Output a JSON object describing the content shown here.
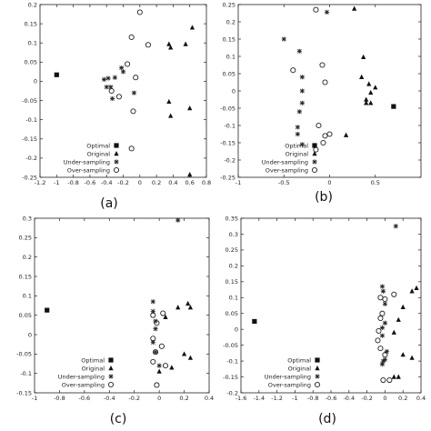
{
  "chart_data": [
    {
      "type": "scatter",
      "caption": "(a)",
      "xlim": [
        -1.2,
        0.8
      ],
      "ylim": [
        -0.25,
        0.2
      ],
      "xticks": [
        "-1.2",
        "-1",
        "-0.8",
        "-0.6",
        "-0.4",
        "-0.2",
        "0",
        "0.2",
        "0.4",
        "0.6",
        "0.8"
      ],
      "yticks": [
        "-0.25",
        "-0.2",
        "-0.15",
        "-0.1",
        "-0.05",
        "0",
        "0.05",
        "0.1",
        "0.15",
        "0.2"
      ],
      "legend_position": "bottom-left",
      "series": [
        {
          "name": "Optimal",
          "marker": "square",
          "x": [
            -1.0
          ],
          "y": [
            0.017
          ]
        },
        {
          "name": "Original",
          "marker": "triangle",
          "x": [
            0.35,
            0.37,
            0.55,
            0.63,
            0.35,
            0.37,
            0.6,
            0.6
          ],
          "y": [
            0.097,
            0.088,
            0.097,
            0.14,
            -0.053,
            -0.09,
            -0.07,
            -0.243
          ]
        },
        {
          "name": "Under-sampling",
          "marker": "asterisk",
          "x": [
            -0.43,
            -0.38,
            -0.35,
            -0.3,
            -0.22,
            -0.2,
            -0.4,
            -0.33,
            -0.07
          ],
          "y": [
            0.005,
            0.008,
            -0.015,
            0.01,
            0.035,
            0.025,
            -0.015,
            -0.045,
            -0.03
          ]
        },
        {
          "name": "Over-sampling",
          "marker": "circle",
          "x": [
            0.0,
            -0.1,
            0.1,
            -0.15,
            -0.05,
            -0.08,
            -0.34,
            -0.25,
            -0.1
          ],
          "y": [
            0.18,
            0.115,
            0.095,
            0.045,
            0.01,
            -0.078,
            -0.025,
            -0.04,
            -0.175
          ]
        }
      ]
    },
    {
      "type": "scatter",
      "caption": "(b)",
      "xlim": [
        -1.0,
        1.0
      ],
      "ylim": [
        -0.25,
        0.25
      ],
      "xticks": [
        "-1",
        "-0.5",
        "0",
        "0.5"
      ],
      "yticks": [
        "-0.25",
        "-0.2",
        "-0.15",
        "-0.1",
        "-0.05",
        "0",
        "0.05",
        "0.1",
        "0.15",
        "0.2",
        "0.25"
      ],
      "legend_position": "bottom-left",
      "series": [
        {
          "name": "Optimal",
          "marker": "square",
          "x": [
            0.7
          ],
          "y": [
            -0.045
          ]
        },
        {
          "name": "Original",
          "marker": "triangle",
          "x": [
            0.27,
            0.37,
            0.35,
            0.43,
            0.5,
            0.45,
            0.4,
            0.4,
            0.45,
            0.18
          ],
          "y": [
            0.238,
            0.098,
            0.04,
            0.02,
            0.01,
            -0.005,
            -0.025,
            -0.035,
            -0.035,
            -0.128
          ]
        },
        {
          "name": "Under-sampling",
          "marker": "asterisk",
          "x": [
            -0.5,
            -0.33,
            -0.3,
            -0.3,
            -0.3,
            -0.33,
            -0.35,
            -0.35,
            -0.3,
            -0.03
          ],
          "y": [
            0.15,
            0.115,
            0.04,
            0.0,
            -0.035,
            -0.06,
            -0.105,
            -0.125,
            -0.155,
            0.228
          ]
        },
        {
          "name": "Over-sampling",
          "marker": "circle",
          "x": [
            -0.15,
            -0.08,
            -0.4,
            -0.05,
            -0.12,
            -0.05,
            0.0,
            -0.07,
            -0.15
          ],
          "y": [
            0.235,
            0.075,
            0.06,
            0.025,
            -0.1,
            -0.13,
            -0.125,
            -0.15,
            -0.17
          ]
        }
      ]
    },
    {
      "type": "scatter",
      "caption": "(c)",
      "xlim": [
        -1.0,
        0.4
      ],
      "ylim": [
        -0.15,
        0.3
      ],
      "xticks": [
        "-1",
        "-0.8",
        "-0.6",
        "-0.4",
        "-0.2",
        "0",
        "0.2",
        "0.4"
      ],
      "yticks": [
        "-0.15",
        "-0.1",
        "-0.05",
        "0",
        "0.05",
        "0.1",
        "0.15",
        "0.2",
        "0.25",
        "0.3"
      ],
      "legend_position": "bottom-left",
      "series": [
        {
          "name": "Optimal",
          "marker": "square",
          "x": [
            -0.9
          ],
          "y": [
            0.063
          ]
        },
        {
          "name": "Original",
          "marker": "triangle",
          "x": [
            0.15,
            0.23,
            0.25,
            0.05,
            0.2,
            0.25,
            0.0,
            0.1
          ],
          "y": [
            0.07,
            0.08,
            0.07,
            0.045,
            -0.05,
            -0.06,
            -0.095,
            -0.085
          ]
        },
        {
          "name": "Under-sampling",
          "marker": "asterisk",
          "x": [
            -0.05,
            -0.05,
            -0.03,
            -0.03,
            -0.05,
            -0.03,
            0.0,
            0.15
          ],
          "y": [
            0.085,
            0.06,
            0.035,
            0.015,
            -0.02,
            -0.045,
            -0.08,
            0.295
          ]
        },
        {
          "name": "Over-sampling",
          "marker": "circle",
          "x": [
            -0.05,
            0.03,
            -0.02,
            -0.05,
            0.02,
            -0.03,
            0.05,
            -0.05,
            -0.02
          ],
          "y": [
            0.05,
            0.055,
            0.03,
            -0.01,
            -0.03,
            -0.045,
            -0.08,
            -0.07,
            -0.13
          ]
        }
      ]
    },
    {
      "type": "scatter",
      "caption": "(d)",
      "xlim": [
        -1.6,
        0.4
      ],
      "ylim": [
        -0.2,
        0.35
      ],
      "xticks": [
        "-1.6",
        "-1.4",
        "-1.2",
        "-1",
        "-0.8",
        "-0.6",
        "-0.4",
        "-0.2",
        "0",
        "0.2",
        "0.4"
      ],
      "yticks": [
        "-0.2",
        "-0.15",
        "-0.1",
        "-0.05",
        "0",
        "0.05",
        "0.1",
        "0.15",
        "0.2",
        "0.25",
        "0.3",
        "0.35"
      ],
      "legend_position": "bottom-left",
      "series": [
        {
          "name": "Optimal",
          "marker": "square",
          "x": [
            -1.45
          ],
          "y": [
            0.025
          ]
        },
        {
          "name": "Original",
          "marker": "triangle",
          "x": [
            0.3,
            0.35,
            0.2,
            0.15,
            0.1,
            0.2,
            0.3,
            0.15,
            0.1
          ],
          "y": [
            0.12,
            0.13,
            0.07,
            0.03,
            -0.01,
            -0.08,
            -0.09,
            -0.15,
            -0.15
          ]
        },
        {
          "name": "Under-sampling",
          "marker": "asterisk",
          "x": [
            0.12,
            -0.03,
            -0.02,
            0.0,
            0.0,
            -0.03,
            -0.03,
            0.02,
            0.0,
            -0.02,
            -0.03
          ],
          "y": [
            0.325,
            0.135,
            0.12,
            0.08,
            0.02,
            0.005,
            -0.02,
            -0.07,
            -0.095,
            -0.1,
            -0.11
          ]
        },
        {
          "name": "Over-sampling",
          "marker": "circle",
          "x": [
            -0.05,
            0.1,
            0.0,
            -0.03,
            -0.05,
            -0.07,
            -0.08,
            -0.05,
            0.0,
            -0.02,
            0.05
          ],
          "y": [
            0.1,
            0.11,
            0.095,
            0.05,
            0.035,
            -0.005,
            -0.035,
            -0.06,
            -0.08,
            -0.16,
            -0.16
          ]
        }
      ]
    }
  ]
}
